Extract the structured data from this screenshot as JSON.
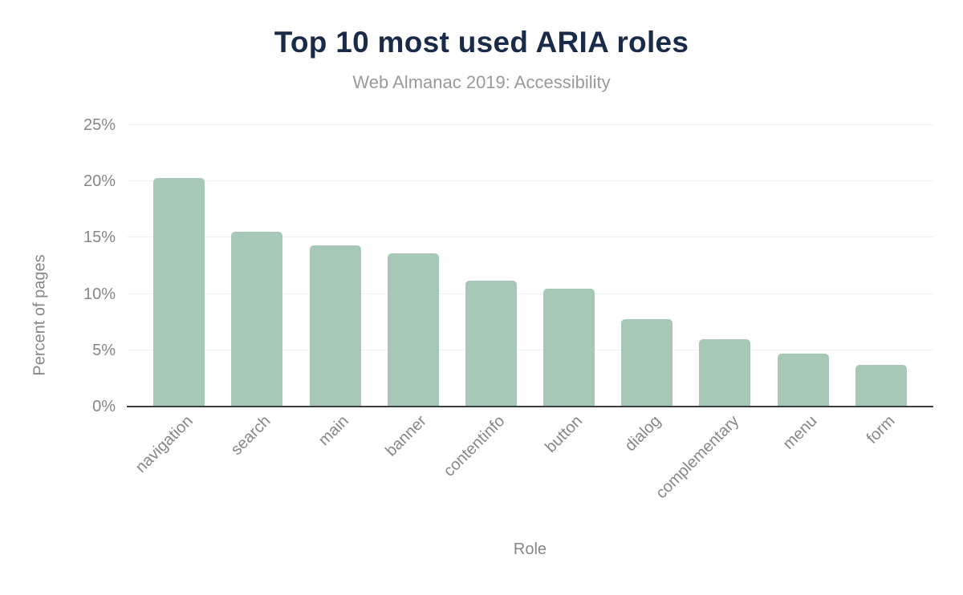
{
  "chart_data": {
    "type": "bar",
    "title": "Top 10 most used ARIA roles",
    "subtitle": "Web Almanac 2019: Accessibility",
    "xlabel": "Role",
    "ylabel": "Percent of pages",
    "categories": [
      "navigation",
      "search",
      "main",
      "banner",
      "contentinfo",
      "button",
      "dialog",
      "complementary",
      "menu",
      "form"
    ],
    "values": [
      20.3,
      15.5,
      14.3,
      13.6,
      11.2,
      10.5,
      7.8,
      6.0,
      4.7,
      3.7
    ],
    "value_unit": "%",
    "ylim": [
      0,
      25
    ],
    "ytick_step": 5,
    "ytick_labels": [
      "0%",
      "5%",
      "10%",
      "15%",
      "20%",
      "25%"
    ],
    "grid": true,
    "legend": false,
    "x_label_rotation_deg": -45,
    "colors": {
      "bar": "#a7c8b7",
      "title": "#1a2b49",
      "subtitle": "#9a9a9a",
      "axis_text": "#85878a",
      "gridline": "#f2f2f2",
      "axis_line": "#3d3d3d",
      "background": "#ffffff"
    }
  }
}
